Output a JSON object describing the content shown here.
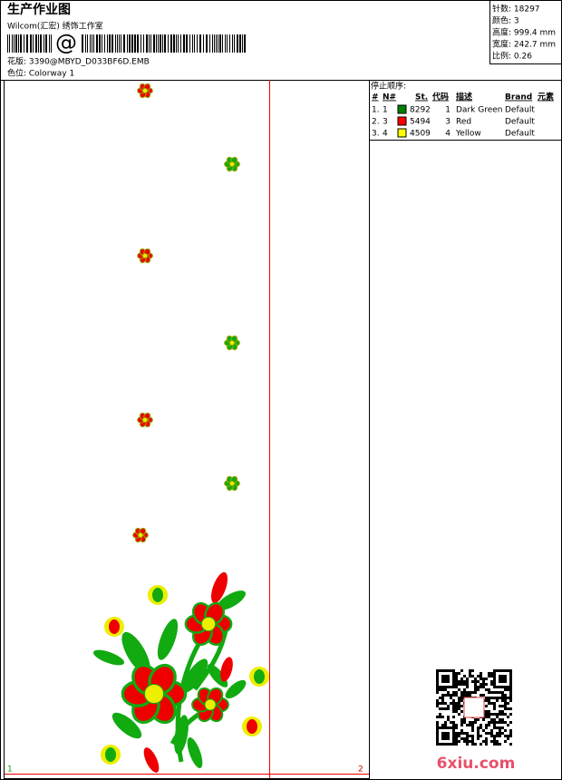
{
  "header": {
    "title": "生产作业图",
    "studio": "Wilcom(汇宏) 绣饰工作室",
    "barcode_text": "@",
    "design": "花版: 3390@MBYD_D033BF6D.EMB",
    "colorway": "色位: Colorway 1"
  },
  "stats": [
    "针数: 18297",
    "颜色: 3",
    "高度: 999.4 mm",
    "宽度: 242.7 mm",
    "比例: 0.26"
  ],
  "stop_sequence": {
    "title": "停止顺序:",
    "columns": [
      "#",
      "N#",
      "St.",
      "代码",
      "描述",
      "Brand",
      "元素"
    ],
    "rows": [
      {
        "cells": [
          "1.",
          "1",
          "8292",
          "1",
          "Dark Green",
          "Default"
        ],
        "color": "#008000"
      },
      {
        "cells": [
          "2.",
          "3",
          "5494",
          "3",
          "Red",
          "Default"
        ],
        "color": "#ff0000"
      },
      {
        "cells": [
          "3.",
          "4",
          "4509",
          "4",
          "Yellow",
          "Default"
        ],
        "color": "#ffff00"
      }
    ]
  },
  "canvas": {
    "start_label": "1",
    "end_label": "2"
  },
  "watermark": "6xiu.com"
}
